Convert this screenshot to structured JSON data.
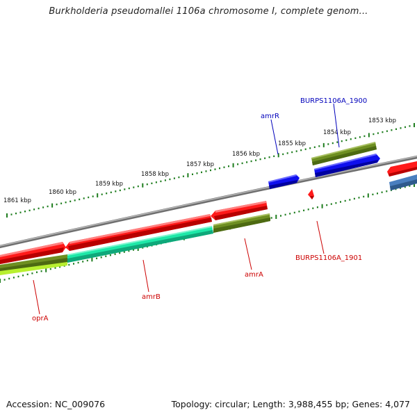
{
  "title": "Burkholderia pseudomallei 1106a chromosome I, complete genom...",
  "footer": {
    "accession": "Accession: NC_009076",
    "summary": "Topology: circular; Length: 3,988,455 bp; Genes: 4,077"
  },
  "colors": {
    "backbone": "#8a8a8a",
    "ticks": "#1e7d1e",
    "red_gene": "#ff1010",
    "olive_gene": "#6e8f22",
    "blue_gene": "#1010ee",
    "teal_gene": "#18e6a6",
    "lime_gene": "#b2f028",
    "steel_gene": "#4a7fbf",
    "red_label": "#cc0000",
    "blue_label": "#0000bb"
  },
  "scale_labels": [
    "1861 kbp",
    "1860 kbp",
    "1859 kbp",
    "1858 kbp",
    "1857 kbp",
    "1856 kbp",
    "1855 kbp",
    "1854 kbp",
    "1853 kbp"
  ],
  "gene_labels": [
    {
      "id": "amrR",
      "text": "amrR",
      "color": "#0000bb"
    },
    {
      "id": "burps1900",
      "text": "BURPS1106A_1900",
      "color": "#0000bb"
    },
    {
      "id": "burps1901",
      "text": "BURPS1106A_1901",
      "color": "#cc0000"
    },
    {
      "id": "amrA",
      "text": "amrA",
      "color": "#cc0000"
    },
    {
      "id": "amrB",
      "text": "amrB",
      "color": "#cc0000"
    },
    {
      "id": "oprA",
      "text": "oprA",
      "color": "#cc0000"
    }
  ],
  "genes": [
    {
      "name": "oprA",
      "color": "red_gene"
    },
    {
      "name": "amrB",
      "color": "red_gene"
    },
    {
      "name": "amrA",
      "color": "red_gene"
    },
    {
      "name": "amrB-band",
      "color": "teal_gene"
    },
    {
      "name": "amrA-band",
      "color": "olive_gene"
    },
    {
      "name": "oprA-band",
      "color": "olive_gene"
    },
    {
      "name": "oprA-band-2",
      "color": "lime_gene"
    },
    {
      "name": "amrR",
      "color": "blue_gene"
    },
    {
      "name": "BURPS1106A_1900",
      "color": "blue_gene"
    },
    {
      "name": "BURPS1106A_1900-band",
      "color": "olive_gene"
    },
    {
      "name": "BURPS1106A_1901",
      "color": "red_gene"
    },
    {
      "name": "right-red",
      "color": "red_gene"
    },
    {
      "name": "right-steel",
      "color": "steel_gene"
    }
  ]
}
